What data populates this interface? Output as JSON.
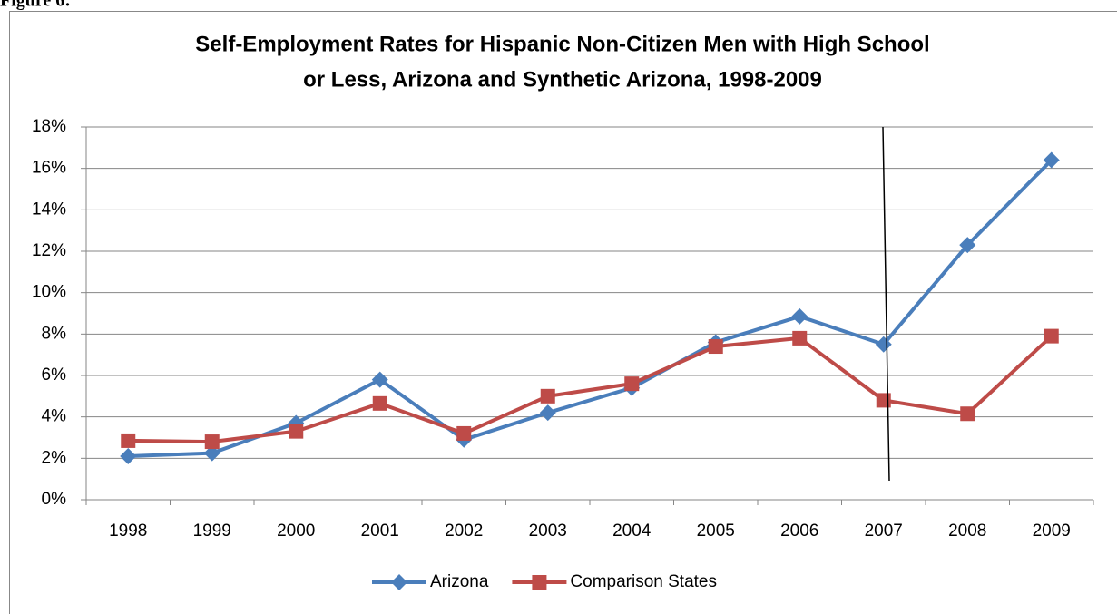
{
  "figure_label": "Figure 6:",
  "chart_data": {
    "type": "line",
    "title": [
      "Self-Employment Rates for Hispanic Non-Citizen Men with High School",
      "or Less, Arizona and Synthetic Arizona, 1998-2009"
    ],
    "categories": [
      "1998",
      "1999",
      "2000",
      "2001",
      "2002",
      "2003",
      "2004",
      "2005",
      "2006",
      "2007",
      "2008",
      "2009"
    ],
    "series": [
      {
        "name": "Arizona",
        "color": "#4a7ebb",
        "marker": "diamond",
        "values": [
          2.1,
          2.25,
          3.7,
          5.8,
          2.9,
          4.2,
          5.4,
          7.6,
          8.85,
          7.5,
          12.3,
          16.4
        ]
      },
      {
        "name": "Comparison States",
        "color": "#be4b48",
        "marker": "square",
        "values": [
          2.85,
          2.8,
          3.3,
          4.65,
          3.2,
          5.0,
          5.6,
          7.4,
          7.8,
          4.8,
          4.15,
          7.9
        ]
      }
    ],
    "ylim": [
      0,
      18
    ],
    "yticks": [
      {
        "value": 0,
        "label": "0%"
      },
      {
        "value": 2,
        "label": "2%"
      },
      {
        "value": 4,
        "label": "4%"
      },
      {
        "value": 6,
        "label": "6%"
      },
      {
        "value": 8,
        "label": "8%"
      },
      {
        "value": 10,
        "label": "10%"
      },
      {
        "value": 12,
        "label": "12%"
      },
      {
        "value": 14,
        "label": "14%"
      },
      {
        "value": 16,
        "label": "16%"
      },
      {
        "value": 18,
        "label": "18%"
      }
    ],
    "grid": true,
    "legend": "bottom"
  }
}
